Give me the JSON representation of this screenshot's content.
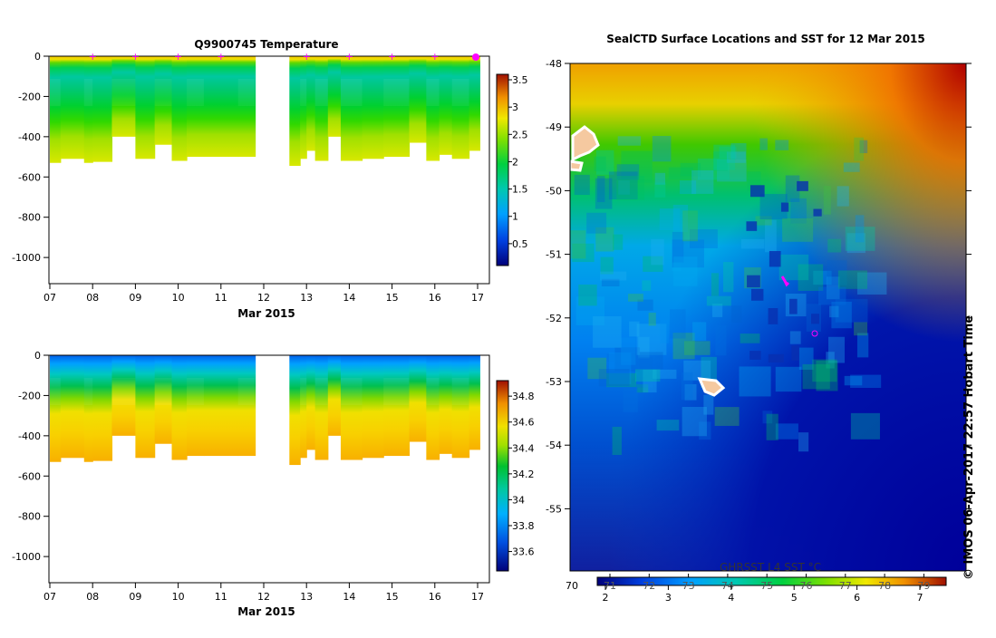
{
  "chart_data": [
    {
      "type": "heatmap",
      "title": "Q9900745  Temperature",
      "xlabel": "Mar 2015",
      "x_ticks": [
        "07",
        "08",
        "09",
        "10",
        "11",
        "12",
        "13",
        "14",
        "15",
        "16",
        "17"
      ],
      "y_ticks": [
        "0",
        "-200",
        "-400",
        "-600",
        "-800",
        "-1000"
      ],
      "ylim": [
        -1130,
        0
      ],
      "colorbar_ticks": [
        "3.5",
        "3",
        "2.5",
        "2",
        "1.5",
        "1",
        "0.5"
      ],
      "colorbar_range": [
        0.1,
        3.6
      ],
      "profile_markers": true,
      "gap": [
        "11.8",
        "12.6"
      ],
      "colors": {
        "deep_blue": "#000080",
        "cyan": "#00c0ff",
        "green": "#00d000",
        "yellow": "#e8e800",
        "orange": "#f0a000",
        "red": "#a00000",
        "marker": "#ff00ff"
      }
    },
    {
      "type": "heatmap",
      "title": "",
      "xlabel": "Mar 2015",
      "x_ticks": [
        "07",
        "08",
        "09",
        "10",
        "11",
        "12",
        "13",
        "14",
        "15",
        "16",
        "17"
      ],
      "y_ticks": [
        "0",
        "-200",
        "-400",
        "-600",
        "-800",
        "-1000"
      ],
      "ylim": [
        -1130,
        0
      ],
      "colorbar_ticks": [
        "34.8",
        "34.6",
        "34.4",
        "34.2",
        "34",
        "33.8",
        "33.6"
      ],
      "colorbar_range": [
        33.45,
        34.92
      ]
    },
    {
      "type": "heatmap",
      "title": "SealCTD Surface Locations and SST for 12 Mar 2015",
      "y_ticks": [
        "-48",
        "-49",
        "-50",
        "-51",
        "-52",
        "-53",
        "-54",
        "-55"
      ],
      "colorbar_label": "GHRSST L4 SST °C",
      "colorbar_top_ticks": [
        "71",
        "72",
        "73",
        "74",
        "75",
        "76",
        "77",
        "78",
        "79"
      ],
      "colorbar_left_tick": "70",
      "colorbar_bottom_ticks": [
        "2",
        "3",
        "4",
        "5",
        "6",
        "7"
      ],
      "credit": "© IMOS 06-Apr-2017 22:57 Hobart Time",
      "colors": {
        "land": "#f5c9a0",
        "seal_track": "#ff00ff"
      }
    }
  ]
}
